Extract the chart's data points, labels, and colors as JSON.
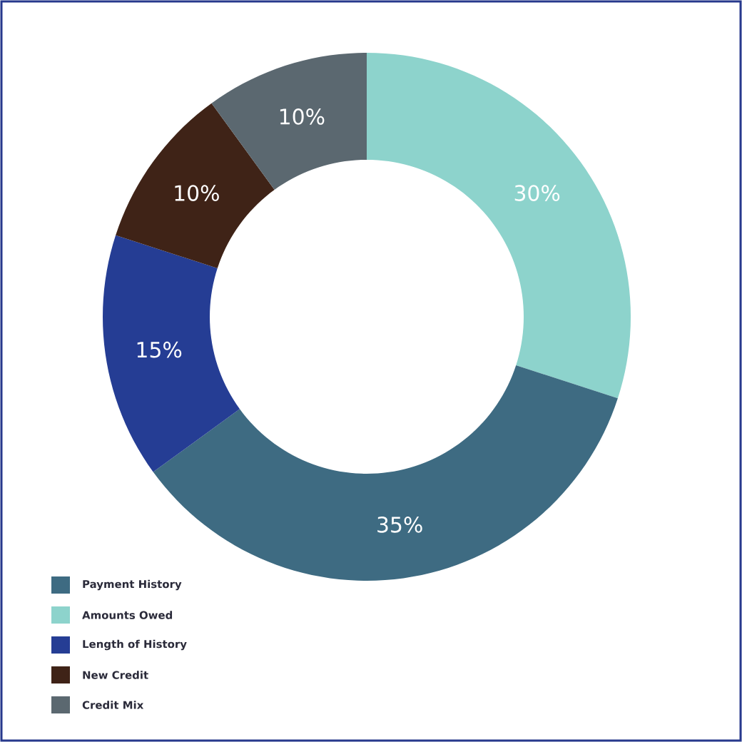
{
  "chart_data": {
    "type": "donut",
    "categories": [
      "Payment History",
      "Amounts Owed",
      "Length of History",
      "New Credit",
      "Credit Mix"
    ],
    "values": [
      35,
      30,
      15,
      10,
      10
    ],
    "colors": [
      "#3e6b82",
      "#8dd3cc",
      "#253d94",
      "#3f2317",
      "#5b6870"
    ],
    "value_labels": [
      "35%",
      "30%",
      "15%",
      "10%",
      "10%"
    ],
    "legend": "bottom left"
  }
}
